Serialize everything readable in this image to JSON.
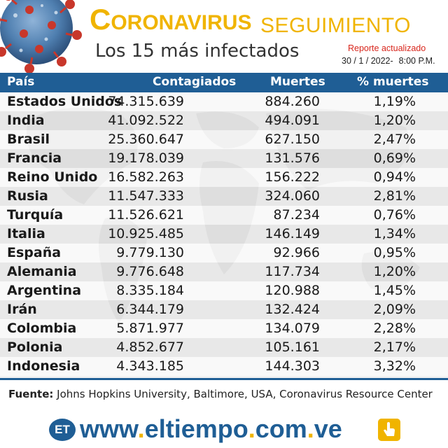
{
  "header": {
    "title_first_letter": "C",
    "title_rest": "ORONAVIRUS",
    "title_second": "SEGUIMIENTO",
    "subtitle": "Los 15 más infectados",
    "report_label": "Reporte actualizado",
    "report_date": "30 / 1 / 2022-",
    "report_time": "8:00 P.M."
  },
  "table": {
    "columns": [
      "País",
      "Contagiados",
      "Muertes",
      "% muertes"
    ],
    "rows": [
      {
        "country": "Estados Unidos",
        "cases": "74.315.639",
        "deaths": "884.260",
        "pct": "1,19%"
      },
      {
        "country": "India",
        "cases": "41.092.522",
        "deaths": "494.091",
        "pct": "1,20%"
      },
      {
        "country": "Brasil",
        "cases": "25.360.647",
        "deaths": "627.150",
        "pct": "2,47%"
      },
      {
        "country": "Francia",
        "cases": "19.178.039",
        "deaths": "131.576",
        "pct": "0,69%"
      },
      {
        "country": "Reino Unido",
        "cases": "16.582.263",
        "deaths": "156.222",
        "pct": "0,94%"
      },
      {
        "country": "Rusia",
        "cases": "11.547.333",
        "deaths": "324.060",
        "pct": "2,81%"
      },
      {
        "country": "Turquía",
        "cases": "11.526.621",
        "deaths": "87.234",
        "pct": "0,76%"
      },
      {
        "country": "Italia",
        "cases": "10.925.485",
        "deaths": "146.149",
        "pct": "1,34%"
      },
      {
        "country": "España",
        "cases": "9.779.130",
        "deaths": "92.966",
        "pct": "0,95%"
      },
      {
        "country": "Alemania",
        "cases": "9.776.648",
        "deaths": "117.734",
        "pct": "1,20%"
      },
      {
        "country": "Argentina",
        "cases": "8.335.184",
        "deaths": "120.988",
        "pct": "1,45%"
      },
      {
        "country": "Irán",
        "cases": "6.344.179",
        "deaths": "132.424",
        "pct": "2,09%"
      },
      {
        "country": "Colombia",
        "cases": "5.871.977",
        "deaths": "134.079",
        "pct": "2,28%"
      },
      {
        "country": "Polonia",
        "cases": "4.852.677",
        "deaths": "105.161",
        "pct": "2,17%"
      },
      {
        "country": "Indonesia",
        "cases": "4.343.185",
        "deaths": "144.303",
        "pct": "3,32%"
      }
    ]
  },
  "footer": {
    "source_label": "Fuente:",
    "source_text": "Johns Hopkins University, Baltimore, USA, Coronavirus Resource Center",
    "logo_text": "ET",
    "url_www": "www",
    "url_dot1": ".",
    "url_name": "eltiempo",
    "url_dot2": ".",
    "url_com": "com",
    "url_dot3": ".",
    "url_ve": "ve",
    "hand_icon": "hand-pointer-icon"
  },
  "colors": {
    "accent_yellow": "#f0b400",
    "brand_blue": "#1f5e95",
    "report_red": "#d8261c"
  }
}
